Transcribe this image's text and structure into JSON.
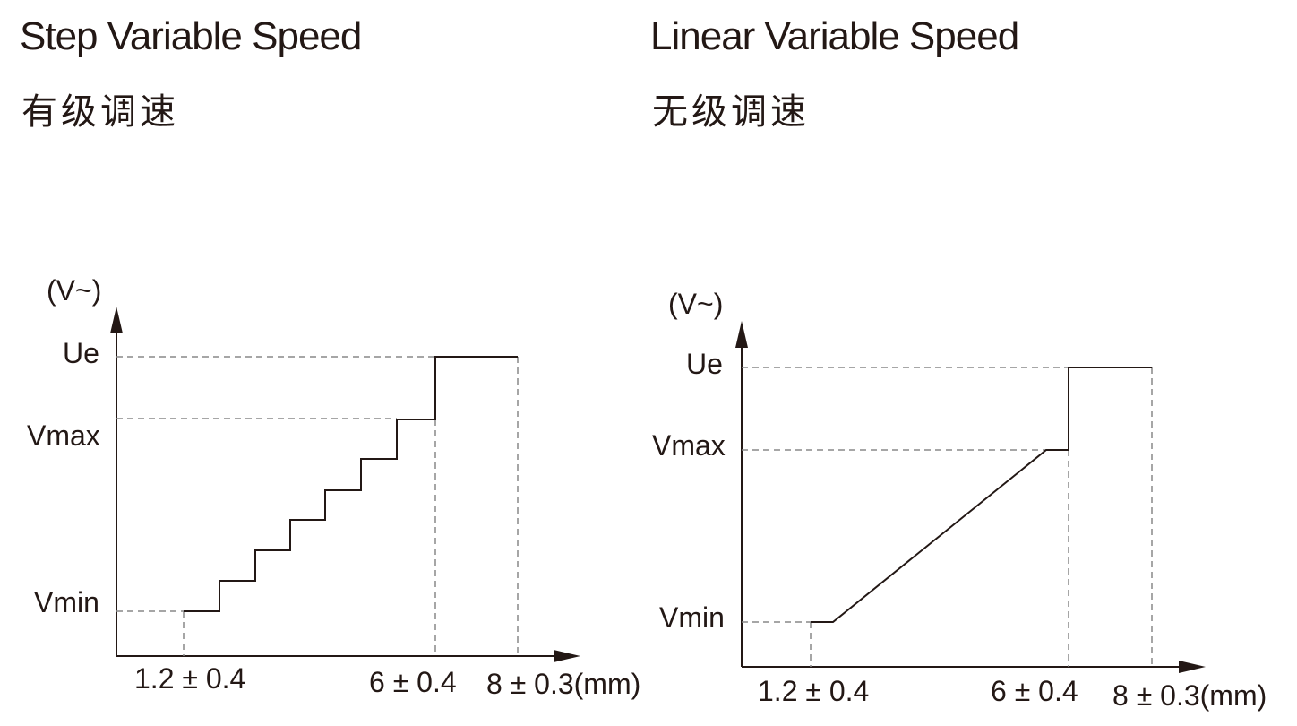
{
  "diagrams": [
    {
      "title_en": "Step Variable Speed",
      "title_zh": "有级调速",
      "y_unit": "(V~)",
      "y_levels": [
        "Ue",
        "Vmax",
        "Vmin"
      ],
      "x_ticks": [
        "1.2 ± 0.4",
        "6 ± 0.4",
        "8 ± 0.3(mm)"
      ]
    },
    {
      "title_en": "Linear Variable Speed",
      "title_zh": "无级调速",
      "y_unit": "(V~)",
      "y_levels": [
        "Ue",
        "Vmax",
        "Vmin"
      ],
      "x_ticks": [
        "1.2 ± 0.4",
        "6 ± 0.4",
        "8 ± 0.3(mm)"
      ]
    }
  ],
  "colors": {
    "line": "#231815",
    "guide": "#888888"
  }
}
